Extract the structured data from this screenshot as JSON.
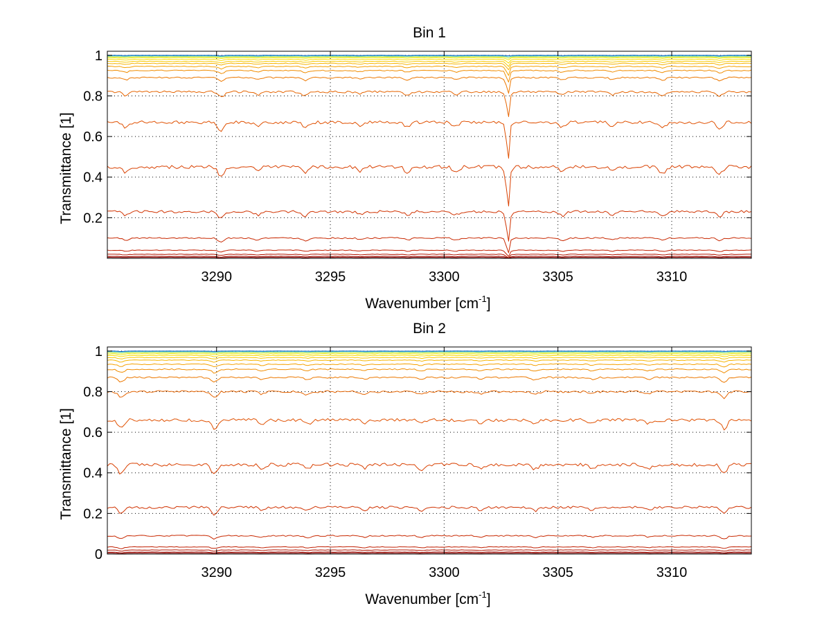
{
  "chart_data": [
    {
      "type": "line",
      "title": "Bin 1",
      "xlabel": "Wavenumber [cm",
      "xlabel_superscript": "-1",
      "xlabel_suffix": "]",
      "ylabel": "Transmittance [1]",
      "xlim": [
        3285.2,
        3313.5
      ],
      "ylim": [
        0.0,
        1.02
      ],
      "xticks": [
        3290,
        3295,
        3300,
        3305,
        3310
      ],
      "yticks": [
        0.2,
        0.4,
        0.6,
        0.8,
        1
      ],
      "ytick_labels": [
        "0.2",
        "0.4",
        "0.6",
        "0.8",
        "1"
      ],
      "grid": true,
      "series_note": "family of transmittance spectra, colors from dark red (low) to blue (high)",
      "series": [
        {
          "baseline": 0.005,
          "color": "#8b0000"
        },
        {
          "baseline": 0.01,
          "color": "#9e0a00"
        },
        {
          "baseline": 0.02,
          "color": "#b01400"
        },
        {
          "baseline": 0.04,
          "color": "#c01e00"
        },
        {
          "baseline": 0.1,
          "color": "#c82800"
        },
        {
          "baseline": 0.23,
          "color": "#d03200"
        },
        {
          "baseline": 0.45,
          "color": "#d94000"
        },
        {
          "baseline": 0.67,
          "color": "#e05000"
        },
        {
          "baseline": 0.82,
          "color": "#e66400"
        },
        {
          "baseline": 0.89,
          "color": "#ec7800"
        },
        {
          "baseline": 0.925,
          "color": "#f08c00"
        },
        {
          "baseline": 0.945,
          "color": "#f4a000"
        },
        {
          "baseline": 0.96,
          "color": "#f6b400"
        },
        {
          "baseline": 0.97,
          "color": "#f8c800"
        },
        {
          "baseline": 0.98,
          "color": "#fadc00"
        },
        {
          "baseline": 0.988,
          "color": "#f0ea10"
        },
        {
          "baseline": 0.993,
          "color": "#c8e830"
        },
        {
          "baseline": 0.997,
          "color": "#3cc8c8"
        },
        {
          "baseline": 1.0,
          "color": "#1464c8"
        }
      ],
      "features": [
        {
          "x": 3286.0,
          "depth": 0.6
        },
        {
          "x": 3290.2,
          "depth": 1.0
        },
        {
          "x": 3291.8,
          "depth": 0.5
        },
        {
          "x": 3293.9,
          "depth": 0.7
        },
        {
          "x": 3296.3,
          "depth": 0.4
        },
        {
          "x": 3298.4,
          "depth": 0.6
        },
        {
          "x": 3300.5,
          "depth": 0.5
        },
        {
          "x": 3302.8,
          "depth": 0.9
        },
        {
          "x": 3305.2,
          "depth": 0.6
        },
        {
          "x": 3307.4,
          "depth": 0.5
        },
        {
          "x": 3309.6,
          "depth": 0.7
        },
        {
          "x": 3312.1,
          "depth": 0.8
        }
      ],
      "spike": {
        "x": 3302.8,
        "depth": 0.2
      }
    },
    {
      "type": "line",
      "title": "Bin 2",
      "xlabel": "Wavenumber [cm",
      "xlabel_superscript": "-1",
      "xlabel_suffix": "]",
      "ylabel": "Transmittance [1]",
      "xlim": [
        3285.2,
        3313.5
      ],
      "ylim": [
        0.0,
        1.02
      ],
      "xticks": [
        3290,
        3295,
        3300,
        3305,
        3310
      ],
      "yticks": [
        0,
        0.2,
        0.4,
        0.6,
        0.8,
        1
      ],
      "ytick_labels": [
        "0",
        "0.2",
        "0.4",
        "0.6",
        "0.8",
        "1"
      ],
      "grid": true,
      "series_note": "family of transmittance spectra, colors from dark red (low) to blue (high)",
      "series": [
        {
          "baseline": 0.005,
          "color": "#8b0000"
        },
        {
          "baseline": 0.01,
          "color": "#9e0a00"
        },
        {
          "baseline": 0.02,
          "color": "#b01400"
        },
        {
          "baseline": 0.035,
          "color": "#c01e00"
        },
        {
          "baseline": 0.09,
          "color": "#c82800"
        },
        {
          "baseline": 0.23,
          "color": "#d03200"
        },
        {
          "baseline": 0.44,
          "color": "#d94000"
        },
        {
          "baseline": 0.66,
          "color": "#e05000"
        },
        {
          "baseline": 0.8,
          "color": "#e66400"
        },
        {
          "baseline": 0.87,
          "color": "#ec7800"
        },
        {
          "baseline": 0.91,
          "color": "#f08c00"
        },
        {
          "baseline": 0.935,
          "color": "#f4a000"
        },
        {
          "baseline": 0.955,
          "color": "#f6b400"
        },
        {
          "baseline": 0.968,
          "color": "#f8c800"
        },
        {
          "baseline": 0.978,
          "color": "#fadc00"
        },
        {
          "baseline": 0.986,
          "color": "#f0ea10"
        },
        {
          "baseline": 0.992,
          "color": "#c8e830"
        },
        {
          "baseline": 0.997,
          "color": "#3cc8c8"
        },
        {
          "baseline": 1.0,
          "color": "#1464c8"
        }
      ],
      "features": [
        {
          "x": 3285.8,
          "depth": 1.0
        },
        {
          "x": 3289.9,
          "depth": 1.0
        },
        {
          "x": 3292.0,
          "depth": 0.4
        },
        {
          "x": 3294.0,
          "depth": 0.5
        },
        {
          "x": 3296.5,
          "depth": 0.4
        },
        {
          "x": 3299.0,
          "depth": 0.5
        },
        {
          "x": 3301.6,
          "depth": 0.4
        },
        {
          "x": 3304.0,
          "depth": 0.5
        },
        {
          "x": 3306.5,
          "depth": 0.4
        },
        {
          "x": 3309.0,
          "depth": 0.4
        },
        {
          "x": 3312.3,
          "depth": 1.0
        }
      ],
      "spike": null
    }
  ]
}
